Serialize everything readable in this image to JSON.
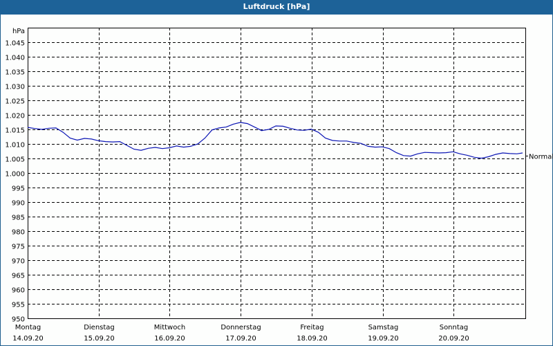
{
  "window": {
    "title": "Luftdruck [hPa]"
  },
  "colors": {
    "titlebar": "#1d6298",
    "line": "#0a14b4",
    "border": "#1e5e8e"
  },
  "chart_data": {
    "type": "line",
    "title": "Luftdruck [hPa]",
    "ylabel": "hPa",
    "xlabel": "",
    "ylim": [
      950,
      1050
    ],
    "yticks": [
      "1.045",
      "1.040",
      "1.035",
      "1.030",
      "1.025",
      "1.020",
      "1.015",
      "1.010",
      "1.005",
      "1.000",
      "995",
      "990",
      "985",
      "980",
      "975",
      "970",
      "965",
      "960",
      "955",
      "950"
    ],
    "grid": true,
    "x_categories": [
      {
        "day": "Montag",
        "date": "14.09.20"
      },
      {
        "day": "Dienstag",
        "date": "15.09.20"
      },
      {
        "day": "Mittwoch",
        "date": "16.09.20"
      },
      {
        "day": "Donnerstag",
        "date": "17.09.20"
      },
      {
        "day": "Freitag",
        "date": "18.09.20"
      },
      {
        "day": "Samstag",
        "date": "19.09.20"
      },
      {
        "day": "Sonntag",
        "date": "20.09.20"
      }
    ],
    "annotation": {
      "label": "Normal",
      "value": 1006
    },
    "series": [
      {
        "name": "Luftdruck",
        "x_days": [
          0,
          0.1,
          0.2,
          0.3,
          0.4,
          0.5,
          0.6,
          0.7,
          0.8,
          0.9,
          1.0,
          1.1,
          1.2,
          1.3,
          1.4,
          1.5,
          1.6,
          1.7,
          1.8,
          1.9,
          2.0,
          2.1,
          2.2,
          2.3,
          2.4,
          2.5,
          2.6,
          2.7,
          2.8,
          2.9,
          3.0,
          3.1,
          3.2,
          3.3,
          3.4,
          3.5,
          3.6,
          3.7,
          3.8,
          3.9,
          4.0,
          4.1,
          4.2,
          4.3,
          4.4,
          4.5,
          4.6,
          4.7,
          4.8,
          4.9,
          5.0,
          5.1,
          5.2,
          5.3,
          5.4,
          5.5,
          5.6,
          5.7,
          5.8,
          5.9,
          6.0,
          6.1,
          6.2,
          6.3,
          6.4,
          6.5,
          6.6,
          6.7,
          6.8,
          6.9,
          7.0
        ],
        "values": [
          1015.7,
          1015.3,
          1015.0,
          1015.4,
          1015.5,
          1014.0,
          1012.0,
          1011.3,
          1011.9,
          1011.7,
          1011.1,
          1010.8,
          1010.7,
          1010.8,
          1009.5,
          1008.2,
          1007.8,
          1008.5,
          1008.8,
          1008.4,
          1008.7,
          1009.3,
          1008.9,
          1009.2,
          1010.0,
          1012.0,
          1014.8,
          1015.5,
          1015.8,
          1016.8,
          1017.4,
          1017.0,
          1015.8,
          1014.6,
          1015.0,
          1016.2,
          1016.1,
          1015.4,
          1014.8,
          1014.7,
          1015.1,
          1014.0,
          1012.0,
          1011.2,
          1011.0,
          1011.0,
          1010.5,
          1010.2,
          1009.2,
          1008.9,
          1009.0,
          1008.4,
          1007.0,
          1006.0,
          1005.8,
          1006.6,
          1007.1,
          1007.0,
          1006.9,
          1007.0,
          1007.3,
          1006.6,
          1006.1,
          1005.4,
          1005.1,
          1005.6,
          1006.4,
          1006.9,
          1006.7,
          1006.6,
          1006.9
        ]
      }
    ]
  }
}
